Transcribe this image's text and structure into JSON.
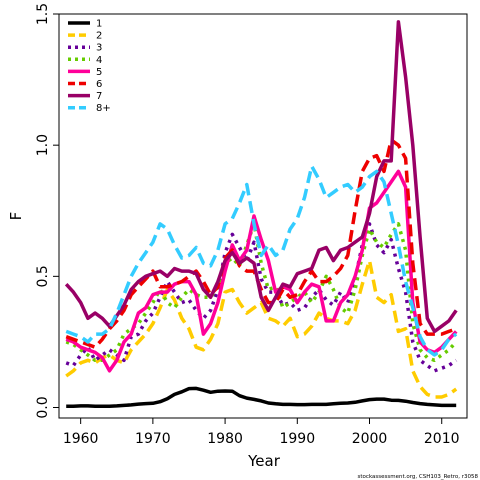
{
  "chart_data": {
    "type": "line",
    "xlabel": "Year",
    "ylabel": "F",
    "xlim": [
      1957,
      2013.5
    ],
    "ylim": [
      -0.04,
      1.5
    ],
    "xticks": [
      "1960",
      "1970",
      "1980",
      "1990",
      "2000",
      "2010"
    ],
    "yticks": [
      "0.0",
      "0.5",
      "1.0",
      "1.5"
    ],
    "legend_position": "top-left",
    "credit": "stockassessment.org, CSH103_Retro, r3058",
    "x": [
      1958,
      1959,
      1960,
      1961,
      1962,
      1963,
      1964,
      1965,
      1966,
      1967,
      1968,
      1969,
      1970,
      1971,
      1972,
      1973,
      1974,
      1975,
      1976,
      1977,
      1978,
      1979,
      1980,
      1981,
      1982,
      1983,
      1984,
      1985,
      1986,
      1987,
      1988,
      1989,
      1990,
      1991,
      1992,
      1993,
      1994,
      1995,
      1996,
      1997,
      1998,
      1999,
      2000,
      2001,
      2002,
      2003,
      2004,
      2005,
      2006,
      2007,
      2008,
      2009,
      2010,
      2011,
      2012
    ],
    "series": [
      {
        "name": "1",
        "color": "#000000",
        "dash": "solid",
        "values": [
          0.005,
          0.005,
          0.006,
          0.006,
          0.005,
          0.005,
          0.005,
          0.006,
          0.008,
          0.01,
          0.013,
          0.015,
          0.016,
          0.022,
          0.033,
          0.05,
          0.06,
          0.072,
          0.073,
          0.066,
          0.058,
          0.062,
          0.063,
          0.062,
          0.045,
          0.036,
          0.031,
          0.025,
          0.017,
          0.014,
          0.012,
          0.012,
          0.011,
          0.011,
          0.012,
          0.012,
          0.012,
          0.014,
          0.016,
          0.017,
          0.02,
          0.025,
          0.03,
          0.032,
          0.032,
          0.028,
          0.027,
          0.024,
          0.019,
          0.015,
          0.012,
          0.01,
          0.008,
          0.008,
          0.008
        ]
      },
      {
        "name": "2",
        "color": "#ffcc00",
        "dash": "dash",
        "values": [
          0.12,
          0.14,
          0.17,
          0.18,
          0.17,
          0.19,
          0.2,
          0.18,
          0.17,
          0.22,
          0.25,
          0.28,
          0.32,
          0.38,
          0.45,
          0.41,
          0.34,
          0.3,
          0.23,
          0.22,
          0.26,
          0.32,
          0.44,
          0.45,
          0.4,
          0.36,
          0.38,
          0.4,
          0.34,
          0.33,
          0.31,
          0.34,
          0.27,
          0.28,
          0.31,
          0.36,
          0.34,
          0.33,
          0.33,
          0.32,
          0.37,
          0.47,
          0.56,
          0.42,
          0.4,
          0.43,
          0.29,
          0.3,
          0.14,
          0.08,
          0.05,
          0.04,
          0.04,
          0.05,
          0.07
        ]
      },
      {
        "name": "3",
        "color": "#660099",
        "dash": "dot",
        "values": [
          0.17,
          0.16,
          0.2,
          0.23,
          0.18,
          0.2,
          0.22,
          0.2,
          0.18,
          0.27,
          0.28,
          0.33,
          0.36,
          0.42,
          0.48,
          0.44,
          0.4,
          0.41,
          0.37,
          0.34,
          0.37,
          0.45,
          0.59,
          0.66,
          0.61,
          0.56,
          0.63,
          0.49,
          0.44,
          0.44,
          0.39,
          0.4,
          0.37,
          0.38,
          0.42,
          0.45,
          0.41,
          0.39,
          0.44,
          0.4,
          0.49,
          0.62,
          0.7,
          0.62,
          0.59,
          0.64,
          0.53,
          0.44,
          0.25,
          0.18,
          0.16,
          0.14,
          0.15,
          0.16,
          0.18
        ]
      },
      {
        "name": "4",
        "color": "#66cc00",
        "dash": "dot",
        "values": [
          0.25,
          0.24,
          0.22,
          0.2,
          0.18,
          0.18,
          0.2,
          0.22,
          0.28,
          0.3,
          0.32,
          0.36,
          0.4,
          0.45,
          0.4,
          0.38,
          0.42,
          0.45,
          0.43,
          0.42,
          0.42,
          0.46,
          0.55,
          0.57,
          0.54,
          0.62,
          0.7,
          0.55,
          0.45,
          0.46,
          0.38,
          0.4,
          0.42,
          0.44,
          0.4,
          0.44,
          0.5,
          0.45,
          0.38,
          0.36,
          0.45,
          0.58,
          0.68,
          0.63,
          0.61,
          0.66,
          0.7,
          0.6,
          0.32,
          0.22,
          0.19,
          0.18,
          0.2,
          0.22,
          0.25
        ]
      },
      {
        "name": "5",
        "color": "#ff0099",
        "dash": "solid",
        "values": [
          0.26,
          0.25,
          0.23,
          0.22,
          0.21,
          0.19,
          0.14,
          0.18,
          0.25,
          0.28,
          0.36,
          0.38,
          0.43,
          0.44,
          0.44,
          0.47,
          0.48,
          0.48,
          0.43,
          0.28,
          0.32,
          0.4,
          0.52,
          0.62,
          0.56,
          0.6,
          0.73,
          0.64,
          0.56,
          0.44,
          0.46,
          0.45,
          0.4,
          0.44,
          0.47,
          0.46,
          0.33,
          0.33,
          0.4,
          0.43,
          0.5,
          0.6,
          0.76,
          0.78,
          0.82,
          0.86,
          0.9,
          0.84,
          0.4,
          0.25,
          0.22,
          0.21,
          0.23,
          0.26,
          0.29
        ]
      },
      {
        "name": "6",
        "color": "#ee0000",
        "dash": "dash",
        "values": [
          0.27,
          0.26,
          0.25,
          0.24,
          0.23,
          0.26,
          0.3,
          0.33,
          0.37,
          0.43,
          0.46,
          0.49,
          0.52,
          0.46,
          0.46,
          0.47,
          0.48,
          0.5,
          0.52,
          0.48,
          0.43,
          0.46,
          0.57,
          0.6,
          0.54,
          0.52,
          0.52,
          0.45,
          0.4,
          0.4,
          0.45,
          0.42,
          0.43,
          0.48,
          0.52,
          0.48,
          0.48,
          0.5,
          0.53,
          0.58,
          0.75,
          0.9,
          0.95,
          0.96,
          0.9,
          1.02,
          1.0,
          0.95,
          0.55,
          0.32,
          0.28,
          0.28,
          0.28,
          0.29,
          0.3
        ]
      },
      {
        "name": "7",
        "color": "#990066",
        "dash": "solid",
        "values": [
          0.47,
          0.44,
          0.4,
          0.34,
          0.36,
          0.34,
          0.31,
          0.35,
          0.39,
          0.45,
          0.48,
          0.5,
          0.51,
          0.52,
          0.5,
          0.53,
          0.52,
          0.52,
          0.51,
          0.45,
          0.42,
          0.48,
          0.56,
          0.59,
          0.55,
          0.57,
          0.55,
          0.42,
          0.37,
          0.42,
          0.47,
          0.46,
          0.51,
          0.52,
          0.53,
          0.6,
          0.61,
          0.56,
          0.6,
          0.61,
          0.63,
          0.65,
          0.74,
          0.88,
          0.94,
          0.94,
          1.47,
          1.26,
          1.0,
          0.65,
          0.34,
          0.29,
          0.31,
          0.33,
          0.37
        ]
      },
      {
        "name": "8+",
        "color": "#33ccff",
        "dash": "dash",
        "values": [
          0.29,
          0.28,
          0.27,
          0.25,
          0.28,
          0.28,
          0.3,
          0.36,
          0.43,
          0.5,
          0.55,
          0.59,
          0.63,
          0.7,
          0.68,
          0.62,
          0.57,
          0.58,
          0.61,
          0.55,
          0.54,
          0.6,
          0.7,
          0.72,
          0.78,
          0.85,
          0.7,
          0.58,
          0.62,
          0.58,
          0.6,
          0.68,
          0.72,
          0.8,
          0.92,
          0.87,
          0.8,
          0.82,
          0.84,
          0.85,
          0.82,
          0.84,
          0.88,
          0.9,
          0.86,
          0.74,
          0.62,
          0.48,
          0.38,
          0.27,
          0.22,
          0.2,
          0.22,
          0.26,
          0.28
        ]
      }
    ]
  }
}
